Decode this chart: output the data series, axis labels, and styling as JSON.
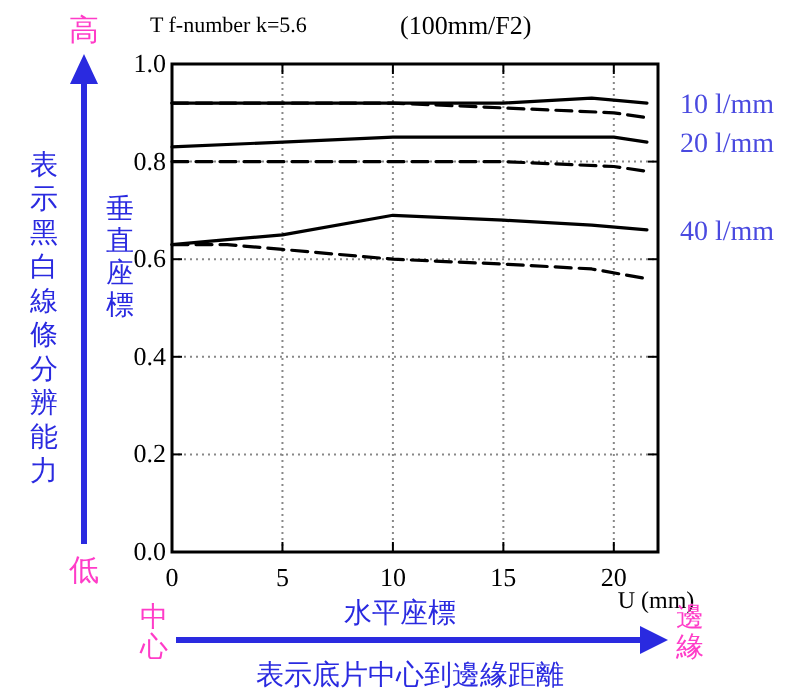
{
  "chart_data": {
    "type": "line",
    "title": "T  f-number k=5.6",
    "subtitle": "(100mm/F2)",
    "xlabel": "水平座標",
    "ylabel": "垂直座標",
    "annotations": [
      "U (mm)",
      "高",
      "低",
      "表示黑白線條分辨能力",
      "中心",
      "邊緣",
      "表示底片中心到邊緣距離"
    ],
    "xlim": [
      0,
      22
    ],
    "ylim": [
      0,
      1
    ],
    "xticks": [
      0,
      5,
      10,
      15,
      20
    ],
    "yticks": [
      {
        "value": 0,
        "label": "0.0"
      },
      {
        "value": 0.2,
        "label": "0.2"
      },
      {
        "value": 0.4,
        "label": "0.4"
      },
      {
        "value": 0.6,
        "label": "0.6"
      },
      {
        "value": 0.8,
        "label": "0.8"
      },
      {
        "value": 1,
        "label": "1.0"
      }
    ],
    "grid": true,
    "legend": "right",
    "marker": "none",
    "series": [
      {
        "name": "10 l/mm",
        "color": "#000000",
        "line_style": "solid",
        "x": [
          0,
          5,
          10,
          15,
          19,
          21.5
        ],
        "values": [
          0.92,
          0.92,
          0.92,
          0.92,
          0.93,
          0.92
        ]
      },
      {
        "color": "#000000",
        "line_style": "dashed",
        "x": [
          0,
          5,
          10,
          15,
          20,
          21.5
        ],
        "values": [
          0.92,
          0.92,
          0.92,
          0.91,
          0.9,
          0.89
        ]
      },
      {
        "name": "20 l/mm",
        "color": "#000000",
        "line_style": "solid",
        "x": [
          0,
          5,
          10,
          15,
          20,
          21.5
        ],
        "values": [
          0.83,
          0.84,
          0.85,
          0.85,
          0.85,
          0.84
        ]
      },
      {
        "color": "#000000",
        "line_style": "dashed",
        "x": [
          0,
          5,
          10,
          15,
          20,
          21.5
        ],
        "values": [
          0.8,
          0.8,
          0.8,
          0.8,
          0.79,
          0.78
        ]
      },
      {
        "name": "40 l/mm",
        "color": "#000000",
        "line_style": "solid",
        "x": [
          0,
          2.5,
          5,
          10,
          15,
          19,
          21.5
        ],
        "values": [
          0.63,
          0.64,
          0.65,
          0.69,
          0.68,
          0.67,
          0.66
        ]
      },
      {
        "color": "#000000",
        "line_style": "dashed",
        "x": [
          0,
          2.5,
          5,
          10,
          15,
          19,
          21.5
        ],
        "values": [
          0.63,
          0.63,
          0.62,
          0.6,
          0.59,
          0.58,
          0.56
        ]
      }
    ]
  }
}
